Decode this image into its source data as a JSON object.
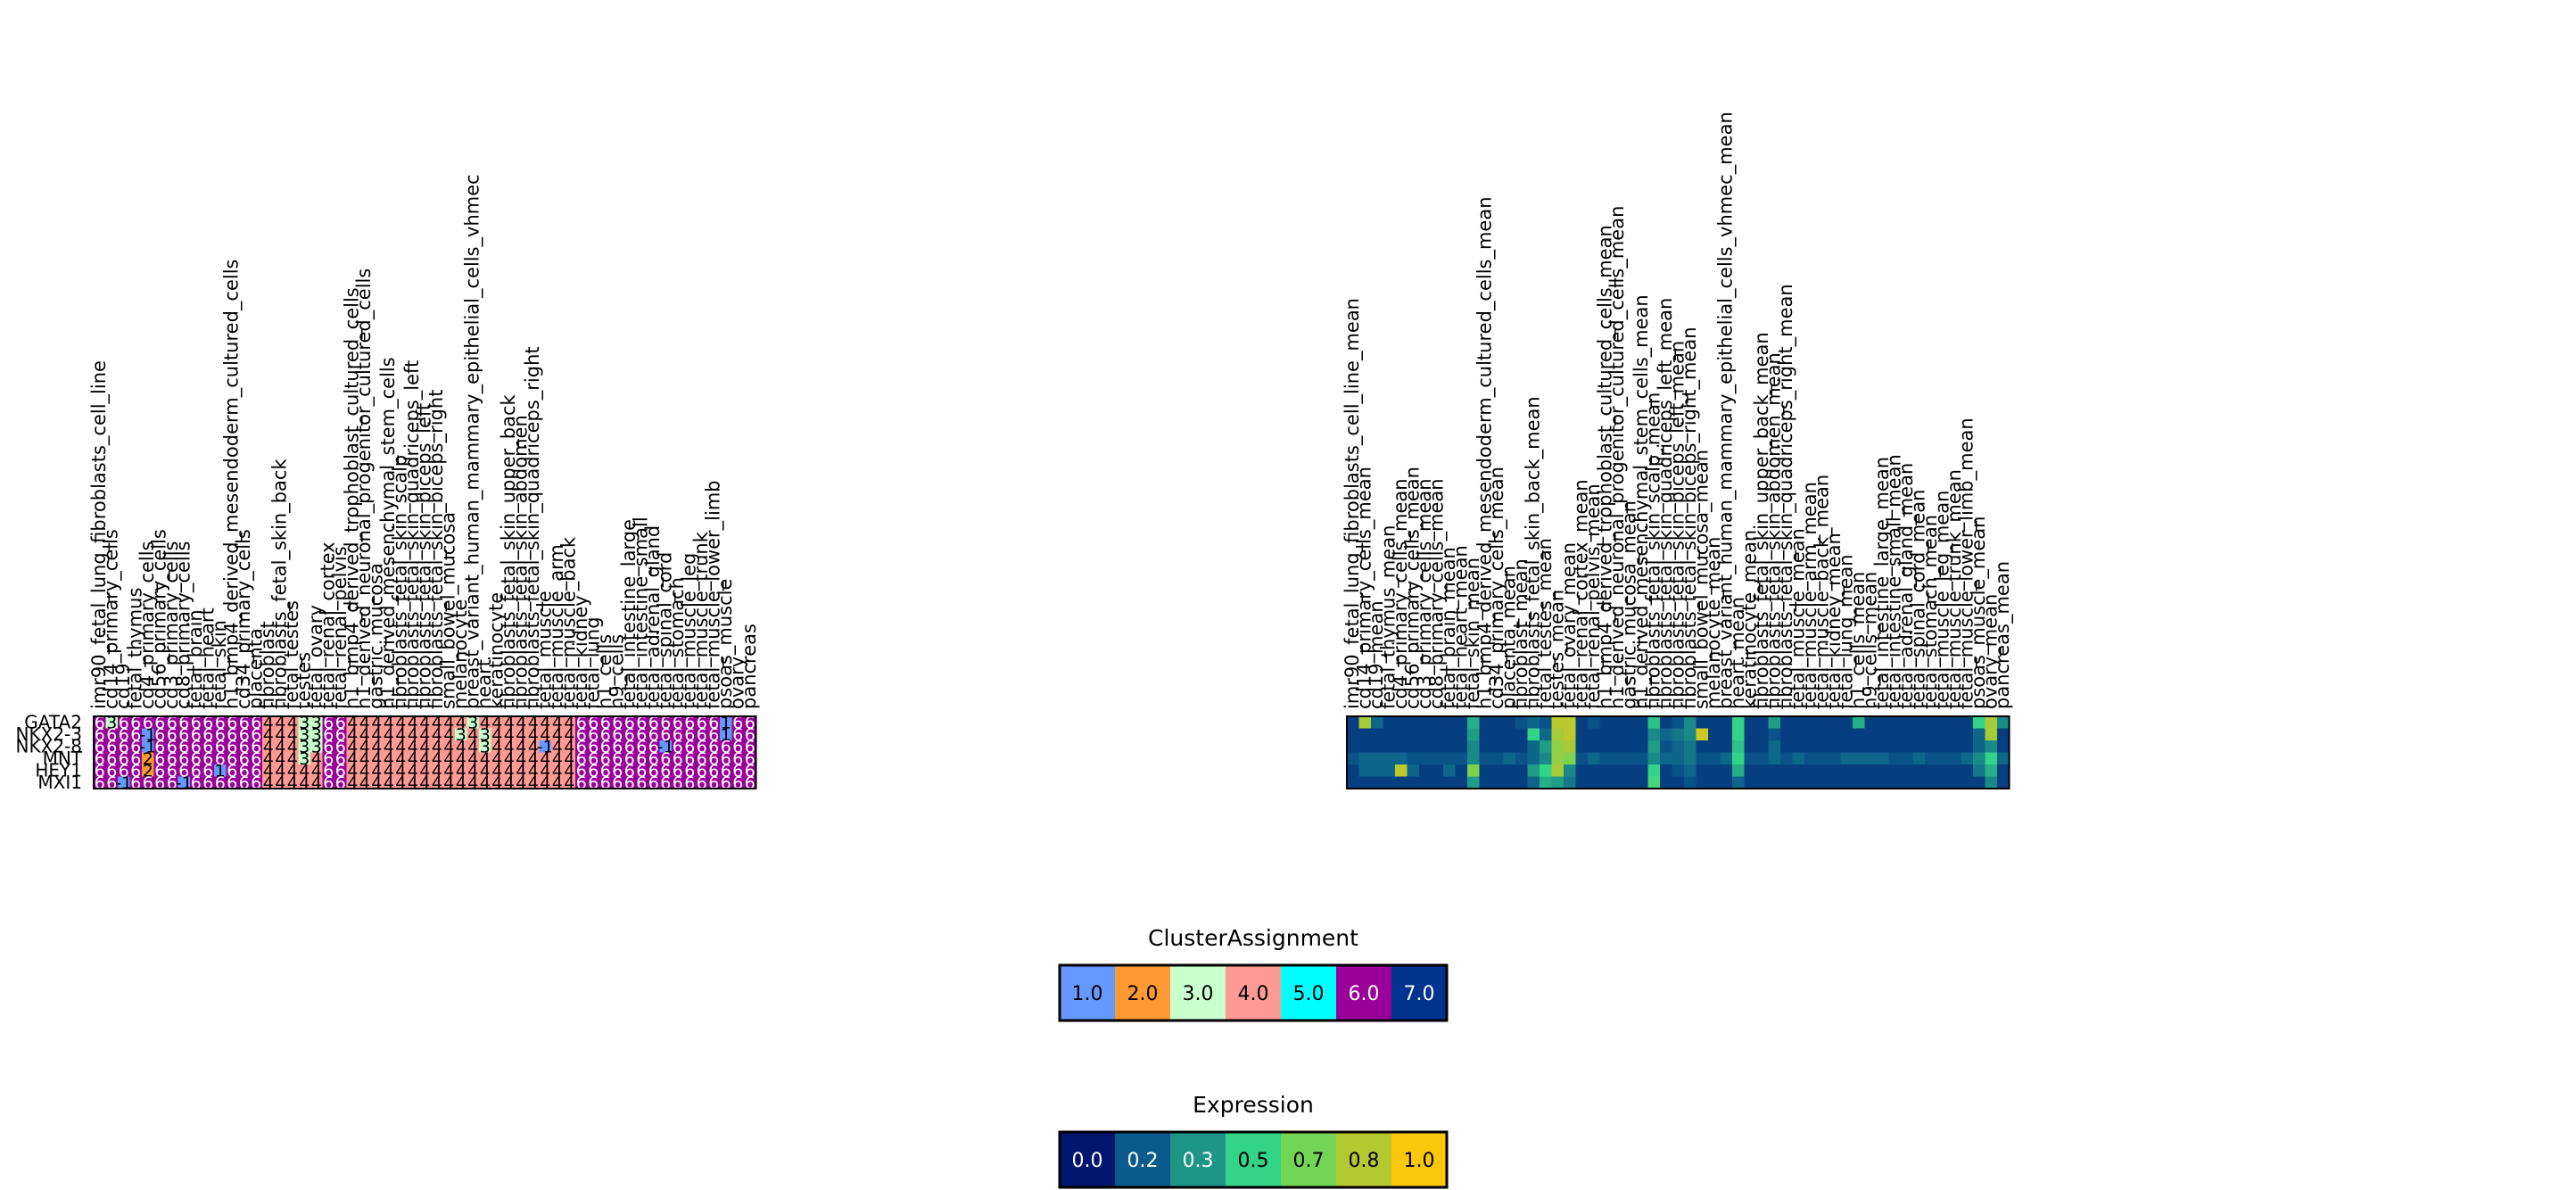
{
  "chart_data": [
    {
      "type": "heatmap",
      "rows": [
        "GATA2",
        "NKX2-3",
        "NKX2-8",
        "MNT",
        "HEY1",
        "MXI1"
      ],
      "columns": [
        "imr90_fetal_lung_fibroblasts_cell_line",
        "cd14_primary_cells",
        "cd19",
        "fetal_thymus",
        "cd4_primary_cells",
        "cd56_primary_cells",
        "cd3_primary_cells",
        "cd8_primary_cells",
        "fetal_brain",
        "fetal_heart",
        "fetal_skin",
        "h1_bmp4_derived_mesendoderm_cultured_cells",
        "cd34_primary_cells",
        "placenta",
        "fibroblast",
        "fibroblasts_fetal_skin_back",
        "fetal_testes",
        "testes",
        "fetal_ovary",
        "fetal_renal_cortex",
        "fetal_renal_pelvis",
        "h1_bmp4_derived_trophoblast_cultured_cells",
        "h1_derived_neuronal_progenitor_cultured_cells",
        "gastric_mucosa",
        "h1_derived_mesenchymal_stem_cells",
        "fibroblasts_fetal_skin_scalp",
        "fibroblasts_fetal_skin_quadriceps_left",
        "fibroblasts_fetal_skin_biceps_left",
        "fibroblasts_fetal_skin_biceps_right",
        "small_bowel_mucosa",
        "melanocyte",
        "breast_variant_human_mammary_epithelial_cells_vhmec",
        "heart",
        "keratinocyte",
        "fibroblasts_fetal_skin_upper_back",
        "fibroblasts_fetal_skin_abdomen",
        "fibroblasts_fetal_skin_quadriceps_right",
        "fetal_muscle",
        "fetal_muscle_arm",
        "fetal_muscle_back",
        "fetal_kidney",
        "fetal_lung",
        "h1_cells",
        "h9_cells",
        "fetal_intestine_large",
        "fetal_intestine_small",
        "fetal_adrenal_gland",
        "fetal_spinal_cord",
        "fetal_stomach",
        "fetal_muscle_leg",
        "fetal_muscle_trunk",
        "fetal_muscle_lower_limb",
        "psoas_muscle",
        "ovary",
        "pancreas"
      ],
      "values": [
        [
          6,
          3,
          6,
          6,
          6,
          6,
          6,
          6,
          6,
          6,
          6,
          6,
          6,
          6,
          4,
          4,
          4,
          3,
          3,
          6,
          6,
          4,
          4,
          4,
          4,
          4,
          4,
          4,
          4,
          4,
          4,
          3,
          4,
          4,
          4,
          4,
          4,
          4,
          4,
          4,
          6,
          6,
          6,
          6,
          6,
          6,
          6,
          6,
          6,
          6,
          6,
          6,
          1,
          6,
          6
        ],
        [
          6,
          6,
          6,
          6,
          -1,
          6,
          6,
          6,
          6,
          6,
          6,
          6,
          6,
          6,
          4,
          4,
          4,
          3,
          3,
          6,
          6,
          4,
          4,
          4,
          4,
          4,
          4,
          4,
          4,
          4,
          3,
          4,
          3,
          4,
          4,
          4,
          4,
          4,
          4,
          4,
          6,
          6,
          6,
          6,
          6,
          6,
          6,
          6,
          6,
          6,
          6,
          6,
          1,
          6,
          6
        ],
        [
          6,
          6,
          6,
          6,
          -1,
          6,
          6,
          6,
          6,
          6,
          6,
          6,
          6,
          6,
          4,
          4,
          4,
          3,
          3,
          6,
          6,
          4,
          4,
          4,
          4,
          4,
          4,
          4,
          4,
          4,
          4,
          4,
          3,
          4,
          4,
          4,
          4,
          -1,
          4,
          4,
          6,
          6,
          6,
          6,
          6,
          6,
          6,
          -1,
          6,
          6,
          6,
          6,
          6,
          6,
          6
        ],
        [
          6,
          6,
          6,
          6,
          2,
          6,
          6,
          6,
          6,
          6,
          6,
          6,
          6,
          6,
          4,
          4,
          4,
          3,
          4,
          6,
          6,
          4,
          4,
          4,
          4,
          4,
          4,
          4,
          4,
          4,
          4,
          4,
          4,
          4,
          4,
          4,
          4,
          4,
          4,
          4,
          6,
          6,
          6,
          6,
          6,
          6,
          6,
          6,
          6,
          6,
          6,
          6,
          6,
          6,
          6
        ],
        [
          6,
          6,
          6,
          6,
          2,
          6,
          6,
          6,
          6,
          6,
          1,
          6,
          6,
          6,
          4,
          4,
          4,
          4,
          4,
          6,
          6,
          4,
          4,
          4,
          4,
          4,
          4,
          4,
          4,
          4,
          4,
          4,
          4,
          4,
          4,
          4,
          4,
          4,
          4,
          4,
          6,
          6,
          6,
          6,
          6,
          6,
          6,
          6,
          6,
          6,
          6,
          6,
          6,
          6,
          6
        ],
        [
          6,
          6,
          -1,
          6,
          6,
          6,
          6,
          -1,
          6,
          6,
          6,
          6,
          6,
          6,
          4,
          4,
          4,
          4,
          4,
          6,
          6,
          4,
          4,
          4,
          4,
          4,
          4,
          4,
          4,
          4,
          4,
          4,
          4,
          4,
          4,
          4,
          4,
          4,
          4,
          4,
          6,
          6,
          6,
          6,
          6,
          6,
          6,
          6,
          6,
          6,
          6,
          6,
          6,
          6,
          6
        ]
      ],
      "colorbar": {
        "title": "ClusterAssignment",
        "ticks": [
          "1.0",
          "2.0",
          "3.0",
          "4.0",
          "5.0",
          "6.0",
          "7.0"
        ],
        "colors": [
          "#6699ff",
          "#ff9933",
          "#c8ffcc",
          "#ff9a94",
          "#00ffff",
          "#990099",
          "#00338f"
        ]
      }
    },
    {
      "type": "heatmap",
      "rows": [
        "GATA2",
        "NKX2-3",
        "NKX2-8",
        "MNT",
        "HEY1",
        "MXI1"
      ],
      "columns": [
        "imr90_fetal_lung_fibroblasts_cell_line_mean",
        "cd14_primary_cells_mean",
        "cd19_mean",
        "fetal_thymus_mean",
        "cd4_primary_cells_mean",
        "cd56_primary_cells_mean",
        "cd3_primary_cells_mean",
        "cd8_primary_cells_mean",
        "fetal_brain_mean",
        "fetal_heart_mean",
        "fetal_skin_mean",
        "h1_bmp4_derived_mesendoderm_cultured_cells_mean",
        "cd34_primary_cells_mean",
        "placenta_mean",
        "fibroblast_mean",
        "fibroblasts_fetal_skin_back_mean",
        "fetal_testes_mean",
        "testes_mean",
        "fetal_ovary_mean",
        "fetal_renal_cortex_mean",
        "fetal_renal_pelvis_mean",
        "h1_bmp4_derived_trophoblast_cultured_cells_mean",
        "h1_derived_neuronal_progenitor_cultured_cells_mean",
        "gastric_mucosa_mean",
        "h1_derived_mesenchymal_stem_cells_mean",
        "fibroblasts_fetal_skin_scalp_mean",
        "fibroblasts_fetal_skin_quadriceps_left_mean",
        "fibroblasts_fetal_skin_biceps_left_mean",
        "fibroblasts_fetal_skin_biceps_right_mean",
        "small_bowel_mucosa_mean",
        "melanocyte_mean",
        "breast_variant_human_mammary_epithelial_cells_vhmec_mean",
        "heart_mean",
        "keratinocyte_mean",
        "fibroblasts_fetal_skin_upper_back_mean",
        "fibroblasts_fetal_skin_abdomen_mean",
        "fibroblasts_fetal_skin_quadriceps_right_mean",
        "fetal_muscle_mean",
        "fetal_muscle_arm_mean",
        "fetal_muscle_back_mean",
        "fetal_kidney_mean",
        "fetal_lung_mean",
        "h1_cells_mean",
        "h9_cells_mean",
        "fetal_intestine_large_mean",
        "fetal_intestine_small_mean",
        "fetal_adrenal_gland_mean",
        "fetal_spinal_cord_mean",
        "fetal_stomach_mean",
        "fetal_muscle_leg_mean",
        "fetal_muscle_trunk_mean",
        "fetal_muscle_lower_limb_mean",
        "psoas_muscle_mean",
        "ovary_mean",
        "pancreas_mean"
      ],
      "values": [
        [
          0.1,
          0.8,
          0.2,
          0.1,
          0.1,
          0.1,
          0.1,
          0.1,
          0.1,
          0.1,
          0.4,
          0.1,
          0.1,
          0.1,
          0.15,
          0.2,
          0.15,
          0.85,
          0.85,
          0.1,
          0.15,
          0.1,
          0.1,
          0.1,
          0.1,
          0.45,
          0.1,
          0.15,
          0.3,
          0.1,
          0.1,
          0.1,
          0.5,
          0.1,
          0.1,
          0.35,
          0.1,
          0.1,
          0.1,
          0.1,
          0.1,
          0.1,
          0.4,
          0.1,
          0.1,
          0.1,
          0.1,
          0.1,
          0.1,
          0.1,
          0.1,
          0.1,
          0.5,
          0.8,
          0.3
        ],
        [
          0.1,
          0.1,
          0.1,
          0.1,
          0.1,
          0.1,
          0.1,
          0.1,
          0.1,
          0.1,
          0.35,
          0.1,
          0.1,
          0.1,
          0.1,
          0.5,
          0.2,
          0.8,
          0.85,
          0.1,
          0.1,
          0.1,
          0.1,
          0.1,
          0.1,
          0.3,
          0.2,
          0.25,
          0.3,
          0.9,
          0.1,
          0.1,
          0.5,
          0.1,
          0.1,
          0.15,
          0.1,
          0.1,
          0.1,
          0.1,
          0.1,
          0.1,
          0.1,
          0.1,
          0.1,
          0.1,
          0.1,
          0.1,
          0.1,
          0.1,
          0.1,
          0.1,
          0.2,
          0.8,
          0.1
        ],
        [
          0.1,
          0.1,
          0.1,
          0.1,
          0.1,
          0.1,
          0.1,
          0.1,
          0.1,
          0.1,
          0.3,
          0.1,
          0.1,
          0.1,
          0.1,
          0.2,
          0.35,
          0.75,
          0.8,
          0.1,
          0.1,
          0.1,
          0.1,
          0.1,
          0.1,
          0.35,
          0.15,
          0.2,
          0.25,
          0.1,
          0.1,
          0.1,
          0.45,
          0.1,
          0.1,
          0.2,
          0.1,
          0.1,
          0.1,
          0.1,
          0.1,
          0.1,
          0.1,
          0.1,
          0.1,
          0.1,
          0.1,
          0.1,
          0.1,
          0.1,
          0.1,
          0.1,
          0.2,
          0.3,
          0.1
        ],
        [
          0.15,
          0.2,
          0.2,
          0.2,
          0.2,
          0.15,
          0.15,
          0.15,
          0.15,
          0.15,
          0.3,
          0.15,
          0.15,
          0.2,
          0.15,
          0.2,
          0.3,
          0.75,
          0.7,
          0.15,
          0.2,
          0.15,
          0.15,
          0.15,
          0.15,
          0.3,
          0.2,
          0.2,
          0.25,
          0.15,
          0.15,
          0.2,
          0.5,
          0.15,
          0.15,
          0.2,
          0.15,
          0.2,
          0.15,
          0.15,
          0.15,
          0.2,
          0.2,
          0.2,
          0.2,
          0.15,
          0.15,
          0.2,
          0.15,
          0.15,
          0.15,
          0.2,
          0.3,
          0.5,
          0.2
        ],
        [
          0.1,
          0.2,
          0.2,
          0.2,
          0.85,
          0.2,
          0.1,
          0.1,
          0.2,
          0.1,
          0.7,
          0.1,
          0.1,
          0.1,
          0.1,
          0.35,
          0.5,
          0.8,
          0.3,
          0.1,
          0.1,
          0.1,
          0.1,
          0.1,
          0.1,
          0.5,
          0.1,
          0.15,
          0.2,
          0.1,
          0.1,
          0.1,
          0.4,
          0.1,
          0.1,
          0.1,
          0.1,
          0.1,
          0.1,
          0.1,
          0.1,
          0.1,
          0.1,
          0.1,
          0.1,
          0.1,
          0.1,
          0.1,
          0.1,
          0.1,
          0.1,
          0.1,
          0.25,
          0.4,
          0.1
        ],
        [
          0.1,
          0.1,
          0.1,
          0.1,
          0.1,
          0.1,
          0.1,
          0.1,
          0.1,
          0.1,
          0.35,
          0.1,
          0.1,
          0.1,
          0.1,
          0.2,
          0.4,
          0.35,
          0.25,
          0.1,
          0.1,
          0.1,
          0.1,
          0.1,
          0.1,
          0.55,
          0.1,
          0.1,
          0.15,
          0.1,
          0.1,
          0.1,
          0.2,
          0.1,
          0.1,
          0.1,
          0.1,
          0.1,
          0.1,
          0.1,
          0.1,
          0.1,
          0.1,
          0.1,
          0.1,
          0.1,
          0.1,
          0.1,
          0.1,
          0.1,
          0.1,
          0.1,
          0.1,
          0.3,
          0.1
        ]
      ],
      "colorbar": {
        "title": "Expression",
        "ticks": [
          "0.0",
          "0.2",
          "0.3",
          "0.5",
          "0.7",
          "0.8",
          "1.0"
        ],
        "colors": [
          "#00166e",
          "#0a5a8c",
          "#1e9687",
          "#33d487",
          "#72d455",
          "#b4c832",
          "#fbc70b"
        ]
      }
    }
  ],
  "palette": {
    "cluster": {
      "-1": "#6699ff",
      "1": "#6699ff",
      "2": "#ff9933",
      "3": "#c8ffcc",
      "4": "#ff9a94",
      "5": "#00ffff",
      "6": "#990099",
      "7": "#00338f"
    },
    "expression_stops": [
      "#00166e",
      "#0a5a8c",
      "#1e9687",
      "#33d487",
      "#72d455",
      "#b4c832",
      "#fbc70b"
    ]
  }
}
